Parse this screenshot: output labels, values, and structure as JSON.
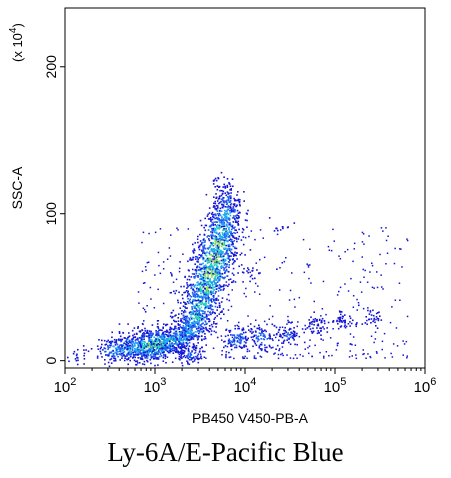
{
  "chart_data": {
    "type": "scatter",
    "title": "",
    "xlabel": "PB450 V450-PB-A",
    "ylabel": "SSC-A",
    "y_multiplier": "(x 10^4)",
    "x_scale": "log",
    "xlim": [
      100,
      1000000
    ],
    "ylim": [
      -5,
      240
    ],
    "x_ticks": [
      {
        "value": 100,
        "base": "10",
        "exp": "2"
      },
      {
        "value": 1000,
        "base": "10",
        "exp": "3"
      },
      {
        "value": 10000,
        "base": "10",
        "exp": "4"
      },
      {
        "value": 100000,
        "base": "10",
        "exp": "5"
      },
      {
        "value": 1000000,
        "base": "10",
        "exp": "6"
      }
    ],
    "y_ticks": [
      {
        "value": 0,
        "label": "0"
      },
      {
        "value": 100,
        "label": "100"
      },
      {
        "value": 200,
        "label": "200"
      }
    ],
    "color_scale": [
      "#1515d6",
      "#1f5ff0",
      "#1ea7f0",
      "#25d6b5",
      "#7fe050"
    ],
    "series": [
      {
        "points": [
          {
            "x": 350,
            "y": 8,
            "n": 2.2
          },
          {
            "x": 500,
            "y": 9,
            "n": 2.6
          },
          {
            "x": 700,
            "y": 10,
            "n": 3.0
          },
          {
            "x": 900,
            "y": 11,
            "n": 3.6
          },
          {
            "x": 1100,
            "y": 12,
            "n": 3.4
          },
          {
            "x": 1500,
            "y": 14,
            "n": 2.8
          },
          {
            "x": 2000,
            "y": 17,
            "n": 2.6
          },
          {
            "x": 2500,
            "y": 22,
            "n": 2.6
          },
          {
            "x": 2800,
            "y": 30,
            "n": 2.9
          },
          {
            "x": 3200,
            "y": 40,
            "n": 3.2
          },
          {
            "x": 3600,
            "y": 50,
            "n": 3.5
          },
          {
            "x": 4000,
            "y": 60,
            "n": 3.8
          },
          {
            "x": 4500,
            "y": 70,
            "n": 3.9
          },
          {
            "x": 5000,
            "y": 80,
            "n": 3.6
          },
          {
            "x": 5500,
            "y": 90,
            "n": 3.0
          },
          {
            "x": 6000,
            "y": 100,
            "n": 2.4
          },
          {
            "x": 6200,
            "y": 110,
            "n": 1.5
          },
          {
            "x": 6000,
            "y": 120,
            "n": 0.7
          },
          {
            "x": 2500,
            "y": 5,
            "n": 1.4
          },
          {
            "x": 8000,
            "y": 15,
            "n": 1.8
          },
          {
            "x": 15000,
            "y": 16,
            "n": 1.6
          },
          {
            "x": 30000,
            "y": 18,
            "n": 1.2
          },
          {
            "x": 60000,
            "y": 25,
            "n": 1.0
          },
          {
            "x": 120000,
            "y": 28,
            "n": 0.8
          },
          {
            "x": 250000,
            "y": 30,
            "n": 0.5
          },
          {
            "x": 12000,
            "y": 60,
            "n": 0.4
          },
          {
            "x": 25000,
            "y": 90,
            "n": 0.2
          },
          {
            "x": 150,
            "y": 5,
            "n": 0.4
          }
        ]
      }
    ]
  },
  "caption": "Ly-6A/E-Pacific Blue"
}
